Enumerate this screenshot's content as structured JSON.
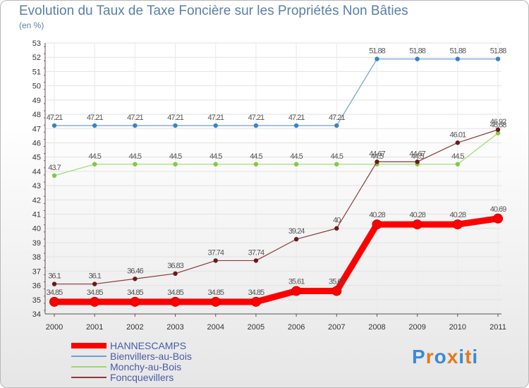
{
  "chart_data": {
    "type": "line",
    "title": "Evolution du Taux de Taxe Foncière sur les Propriétés Non Bâties",
    "ylabel": "(en %)",
    "xlabel": "",
    "ylim": [
      34,
      53
    ],
    "yticks": [
      "34",
      "35",
      "36",
      "37",
      "38",
      "39",
      "40",
      "41",
      "42",
      "43",
      "44",
      "45",
      "46",
      "47",
      "48",
      "49",
      "50",
      "51",
      "52",
      "53"
    ],
    "categories": [
      "2000",
      "2001",
      "2002",
      "2003",
      "2004",
      "2005",
      "2006",
      "2007",
      "2008",
      "2009",
      "2010",
      "2011"
    ],
    "series": [
      {
        "name": "HANNESCAMPS",
        "color": "#ff0000",
        "values": [
          34.85,
          34.85,
          34.85,
          34.85,
          34.85,
          34.85,
          35.61,
          35.61,
          40.28,
          40.28,
          40.28,
          40.69
        ],
        "labels": [
          "34.85",
          "34.85",
          "34.85",
          "34.85",
          "34.85",
          "34.85",
          "35.61",
          "35.61",
          "40.28",
          "40.28",
          "40.28",
          "40.69"
        ]
      },
      {
        "name": "Bienvillers-au-Bois",
        "color": "#6fa0d0",
        "values": [
          47.21,
          47.21,
          47.21,
          47.21,
          47.21,
          47.21,
          47.21,
          47.21,
          51.88,
          51.88,
          51.88,
          51.88
        ],
        "labels": [
          "47.21",
          "47.21",
          "47.21",
          "47.21",
          "47.21",
          "47.21",
          "47.21",
          "47.21",
          "51.88",
          "51.88",
          "51.88",
          "51.88"
        ]
      },
      {
        "name": "Monchy-au-Bois",
        "color": "#99dd66",
        "values": [
          43.7,
          44.5,
          44.5,
          44.5,
          44.5,
          44.5,
          44.5,
          44.5,
          44.5,
          44.5,
          44.5,
          46.68
        ],
        "labels": [
          "43.7",
          "44.5",
          "44.5",
          "44.5",
          "44.5",
          "44.5",
          "44.5",
          "44.5",
          "44.5",
          "44.5",
          "44.5",
          "46.68"
        ]
      },
      {
        "name": "Foncquevillers",
        "color": "#8a3a3a",
        "values": [
          36.1,
          36.1,
          36.46,
          36.83,
          37.74,
          37.74,
          39.24,
          40,
          44.67,
          44.67,
          46.01,
          46.92
        ],
        "labels": [
          "36.1",
          "36.1",
          "36.46",
          "36.83",
          "37.74",
          "37.74",
          "39.24",
          "40",
          "44.67",
          "44.67",
          "46.01",
          "46.92"
        ]
      }
    ],
    "legend": "bottom-left"
  },
  "logo": {
    "text": "Proxiti",
    "letters": [
      "P",
      "r",
      "o",
      "x",
      "i",
      "t",
      "i"
    ],
    "colors": [
      "#3a8ad6",
      "#e07a20",
      "#3a8ad6",
      "#e07a20",
      "#3a8ad6",
      "#e07a20",
      "#3a8ad6"
    ]
  }
}
